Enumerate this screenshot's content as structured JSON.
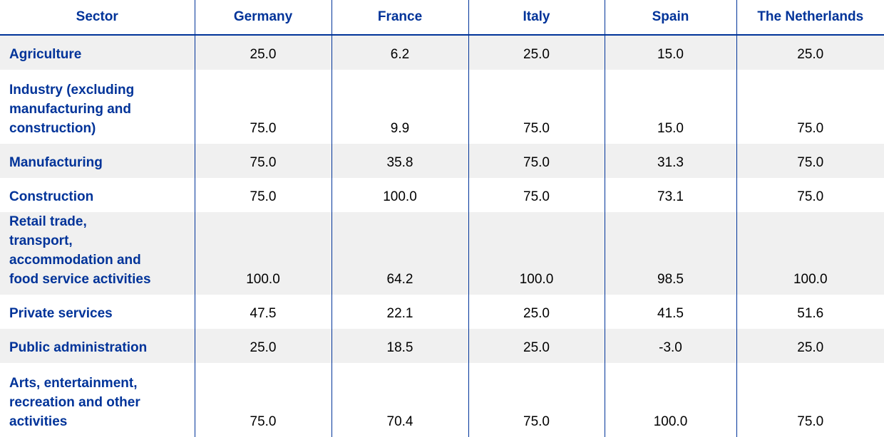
{
  "table": {
    "headers": [
      "Sector",
      "Germany",
      "France",
      "Italy",
      "Spain",
      "The Netherlands"
    ],
    "rows": [
      [
        "Agriculture",
        "25.0",
        "6.2",
        "25.0",
        "15.0",
        "25.0"
      ],
      [
        "Industry (excluding manufacturing and construction)",
        "75.0",
        "9.9",
        "75.0",
        "15.0",
        "75.0"
      ],
      [
        "Manufacturing",
        "75.0",
        "35.8",
        "75.0",
        "31.3",
        "75.0"
      ],
      [
        "Construction",
        "75.0",
        "100.0",
        "75.0",
        "73.1",
        "75.0"
      ],
      [
        "Retail trade, transport, accommodation and food service activities",
        "100.0",
        "64.2",
        "100.0",
        "98.5",
        "100.0"
      ],
      [
        "Private services",
        "47.5",
        "22.1",
        "25.0",
        "41.5",
        "51.6"
      ],
      [
        "Public administration",
        "25.0",
        "18.5",
        "25.0",
        "-3.0",
        "25.0"
      ],
      [
        "Arts, entertainment, recreation and other activities",
        "75.0",
        "70.4",
        "75.0",
        "100.0",
        "75.0"
      ]
    ]
  }
}
